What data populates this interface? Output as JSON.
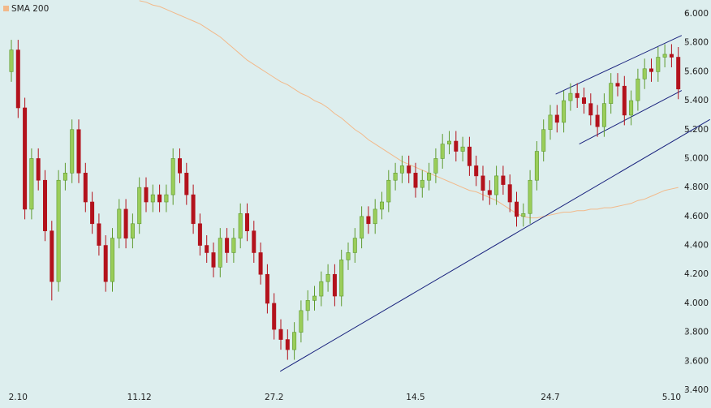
{
  "chart_data": {
    "type": "candlestick",
    "categories": [
      null,
      "2.10",
      null,
      null,
      null,
      null,
      null,
      null,
      null,
      null,
      null,
      null,
      null,
      null,
      null,
      null,
      null,
      null,
      null,
      "11.12",
      null,
      null,
      null,
      null,
      null,
      null,
      null,
      null,
      null,
      null,
      null,
      null,
      null,
      null,
      null,
      null,
      null,
      null,
      null,
      "27.2",
      null,
      null,
      null,
      null,
      null,
      null,
      null,
      null,
      null,
      null,
      null,
      null,
      null,
      null,
      null,
      null,
      null,
      null,
      null,
      null,
      "14.5",
      null,
      null,
      null,
      null,
      null,
      null,
      null,
      null,
      null,
      null,
      null,
      null,
      null,
      null,
      null,
      null,
      null,
      null,
      null,
      "24.7",
      null,
      null,
      null,
      null,
      null,
      null,
      null,
      null,
      null,
      null,
      null,
      null,
      null,
      null,
      null,
      null,
      null,
      "5.10",
      null
    ],
    "open": [
      5.6,
      5.75,
      5.35,
      4.65,
      5.0,
      4.85,
      4.5,
      4.15,
      4.85,
      4.9,
      5.2,
      4.9,
      4.7,
      4.55,
      4.4,
      4.15,
      4.45,
      4.65,
      4.45,
      4.55,
      4.8,
      4.7,
      4.75,
      4.7,
      4.75,
      5.0,
      4.9,
      4.75,
      4.55,
      4.4,
      4.35,
      4.25,
      4.45,
      4.35,
      4.45,
      4.62,
      4.5,
      4.35,
      4.2,
      4.0,
      3.82,
      3.75,
      3.68,
      3.8,
      3.95,
      4.02,
      4.05,
      4.15,
      4.2,
      4.05,
      4.3,
      4.35,
      4.45,
      4.6,
      4.55,
      4.65,
      4.7,
      4.85,
      4.9,
      4.95,
      4.9,
      4.8,
      4.85,
      4.9,
      5.0,
      5.1,
      5.12,
      5.05,
      5.08,
      4.95,
      4.88,
      4.78,
      4.75,
      4.88,
      4.82,
      4.7,
      4.6,
      4.62,
      4.85,
      5.05,
      5.2,
      5.3,
      5.25,
      5.4,
      5.45,
      5.42,
      5.38,
      5.3,
      5.22,
      5.38,
      5.52,
      5.5,
      5.3,
      5.4,
      5.55,
      5.62,
      5.6,
      5.7,
      5.72,
      5.7
    ],
    "high": [
      5.82,
      5.82,
      5.42,
      5.07,
      5.07,
      4.92,
      4.57,
      4.92,
      4.97,
      5.27,
      5.27,
      4.97,
      4.77,
      4.62,
      4.47,
      4.52,
      4.72,
      4.72,
      4.62,
      4.87,
      4.87,
      4.82,
      4.82,
      4.82,
      5.07,
      5.07,
      4.97,
      4.82,
      4.62,
      4.47,
      4.42,
      4.52,
      4.52,
      4.52,
      4.69,
      4.69,
      4.57,
      4.42,
      4.27,
      4.07,
      3.89,
      3.82,
      3.87,
      4.02,
      4.09,
      4.12,
      4.22,
      4.27,
      4.27,
      4.37,
      4.42,
      4.52,
      4.67,
      4.67,
      4.72,
      4.77,
      4.92,
      4.97,
      5.02,
      5.02,
      4.97,
      4.92,
      4.97,
      5.07,
      5.17,
      5.19,
      5.19,
      5.15,
      5.15,
      5.02,
      4.95,
      4.85,
      4.95,
      4.95,
      4.89,
      4.77,
      4.69,
      4.92,
      5.12,
      5.27,
      5.37,
      5.37,
      5.47,
      5.52,
      5.52,
      5.49,
      5.45,
      5.37,
      5.45,
      5.59,
      5.59,
      5.57,
      5.47,
      5.62,
      5.69,
      5.69,
      5.77,
      5.79,
      5.79,
      5.77
    ],
    "low": [
      5.53,
      5.28,
      4.58,
      4.58,
      4.78,
      4.43,
      4.02,
      4.08,
      4.78,
      4.83,
      4.83,
      4.63,
      4.48,
      4.33,
      4.08,
      4.08,
      4.38,
      4.38,
      4.38,
      4.48,
      4.63,
      4.63,
      4.63,
      4.63,
      4.68,
      4.83,
      4.68,
      4.48,
      4.33,
      4.28,
      4.18,
      4.18,
      4.28,
      4.28,
      4.38,
      4.43,
      4.28,
      4.13,
      3.93,
      3.75,
      3.68,
      3.61,
      3.61,
      3.73,
      3.88,
      3.95,
      3.98,
      4.08,
      3.98,
      3.98,
      4.23,
      4.28,
      4.38,
      4.48,
      4.48,
      4.58,
      4.63,
      4.78,
      4.83,
      4.83,
      4.73,
      4.73,
      4.78,
      4.83,
      4.93,
      5.03,
      4.98,
      4.98,
      4.88,
      4.81,
      4.71,
      4.68,
      4.68,
      4.75,
      4.63,
      4.53,
      4.53,
      4.55,
      4.78,
      4.98,
      5.13,
      5.18,
      5.18,
      5.33,
      5.35,
      5.31,
      5.23,
      5.15,
      5.15,
      5.31,
      5.43,
      5.23,
      5.23,
      5.33,
      5.48,
      5.53,
      5.53,
      5.63,
      5.63,
      5.41
    ],
    "close": [
      5.75,
      5.35,
      4.65,
      5.0,
      4.85,
      4.5,
      4.15,
      4.85,
      4.9,
      5.2,
      4.9,
      4.7,
      4.55,
      4.4,
      4.15,
      4.45,
      4.65,
      4.45,
      4.55,
      4.8,
      4.7,
      4.75,
      4.7,
      4.75,
      5.0,
      4.9,
      4.75,
      4.55,
      4.4,
      4.35,
      4.25,
      4.45,
      4.35,
      4.45,
      4.62,
      4.5,
      4.35,
      4.2,
      4.0,
      3.82,
      3.75,
      3.68,
      3.8,
      3.95,
      4.02,
      4.05,
      4.15,
      4.2,
      4.05,
      4.3,
      4.35,
      4.45,
      4.6,
      4.55,
      4.65,
      4.7,
      4.85,
      4.9,
      4.95,
      4.9,
      4.8,
      4.85,
      4.9,
      5.0,
      5.1,
      5.12,
      5.05,
      5.08,
      4.95,
      4.88,
      4.78,
      4.75,
      4.88,
      4.82,
      4.7,
      4.6,
      4.62,
      4.85,
      5.05,
      5.2,
      5.3,
      5.25,
      5.4,
      5.45,
      5.42,
      5.38,
      5.3,
      5.22,
      5.38,
      5.52,
      5.5,
      5.3,
      5.4,
      5.55,
      5.62,
      5.6,
      5.7,
      5.72,
      5.7,
      5.48
    ],
    "up_color": "#9acd5a",
    "down_color": "#b3121c",
    "series": [
      {
        "name": "SMA 200",
        "color": "#f2b98a",
        "values": [
          null,
          null,
          null,
          null,
          null,
          null,
          null,
          null,
          null,
          null,
          null,
          null,
          null,
          null,
          null,
          null,
          null,
          null,
          null,
          6.09,
          6.08,
          6.06,
          6.05,
          6.03,
          6.01,
          5.99,
          5.97,
          5.95,
          5.93,
          5.9,
          5.87,
          5.84,
          5.8,
          5.76,
          5.72,
          5.68,
          5.65,
          5.62,
          5.59,
          5.56,
          5.53,
          5.51,
          5.48,
          5.45,
          5.43,
          5.4,
          5.38,
          5.35,
          5.31,
          5.28,
          5.24,
          5.2,
          5.17,
          5.13,
          5.1,
          5.07,
          5.04,
          5.01,
          4.98,
          4.96,
          4.94,
          4.92,
          4.9,
          4.88,
          4.86,
          4.84,
          4.82,
          4.8,
          4.78,
          4.77,
          4.75,
          4.73,
          4.71,
          4.68,
          4.65,
          4.62,
          4.6,
          4.59,
          4.59,
          4.6,
          4.61,
          4.62,
          4.63,
          4.63,
          4.64,
          4.64,
          4.65,
          4.65,
          4.66,
          4.66,
          4.67,
          4.68,
          4.69,
          4.71,
          4.72,
          4.74,
          4.76,
          4.78,
          4.79,
          4.8
        ]
      }
    ],
    "trendlines": [
      {
        "color": "#1a237e",
        "x": [
          39.9,
          103.7
        ],
        "y": [
          3.53,
          5.27
        ]
      },
      {
        "color": "#1a237e",
        "x": [
          80.8,
          99.5
        ],
        "y": [
          5.445,
          5.85
        ]
      },
      {
        "color": "#1a237e",
        "x": [
          84.3,
          99.5
        ],
        "y": [
          5.1,
          5.47
        ]
      }
    ],
    "legend": "upper left",
    "ylim": [
      3.277,
      6.095
    ],
    "yticks": [
      {
        "value": 3.4,
        "label": "3.400"
      },
      {
        "value": 3.6,
        "label": "3.600"
      },
      {
        "value": 3.8,
        "label": "3.800"
      },
      {
        "value": 4.0,
        "label": "4.000"
      },
      {
        "value": 4.2,
        "label": "4.200"
      },
      {
        "value": 4.4,
        "label": "4.400"
      },
      {
        "value": 4.6,
        "label": "4.600"
      },
      {
        "value": 4.8,
        "label": "4.800"
      },
      {
        "value": 5.0,
        "label": "5.000"
      },
      {
        "value": 5.2,
        "label": "5.200"
      },
      {
        "value": 5.4,
        "label": "5.400"
      },
      {
        "value": 5.6,
        "label": "5.600"
      },
      {
        "value": 5.8,
        "label": "5.800"
      },
      {
        "value": 6.0,
        "label": "6.000"
      }
    ]
  }
}
